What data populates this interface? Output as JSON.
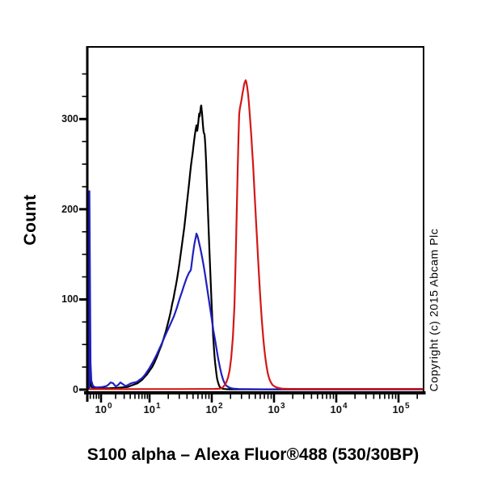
{
  "page": {
    "copyright": "Copyright (c) 2015 Abcam Plc",
    "background": "#ffffff"
  },
  "colors": {
    "axis": "#000000",
    "black_curve": "#000000",
    "blue_curve": "#1f1fc0",
    "red_curve": "#d41717",
    "background": "#ffffff"
  },
  "chart_data": {
    "type": "line",
    "subtype": "flow-cytometry-histogram",
    "title": "S100 alpha – Alexa Fluor®488 (530/30BP)",
    "xlabel": "",
    "ylabel": "Count",
    "x_scale": "log",
    "xlim": [
      0.55,
      250000
    ],
    "ylim": [
      0,
      380
    ],
    "grid": false,
    "legend": null,
    "y_ticks": [
      {
        "label": "0",
        "value": 0
      },
      {
        "label": "100",
        "value": 100
      },
      {
        "label": "200",
        "value": 200
      },
      {
        "label": "300",
        "value": 300
      }
    ],
    "y_minor_tick_step": 25,
    "y_minor_tick_max": 350,
    "x_ticks": [
      {
        "base": "10",
        "exp": "0",
        "value": 1
      },
      {
        "base": "10",
        "exp": "1",
        "value": 10
      },
      {
        "base": "10",
        "exp": "2",
        "value": 100
      },
      {
        "base": "10",
        "exp": "3",
        "value": 1000
      },
      {
        "base": "10",
        "exp": "4",
        "value": 10000
      },
      {
        "base": "10",
        "exp": "5",
        "value": 100000
      }
    ],
    "series": [
      {
        "name": "black-curve",
        "color": "#000000",
        "points": [
          [
            0.575,
            0
          ],
          [
            0.575,
            148
          ],
          [
            0.59,
            40
          ],
          [
            0.6,
            10
          ],
          [
            0.62,
            4
          ],
          [
            0.65,
            2.5
          ],
          [
            0.68,
            2
          ],
          [
            0.76,
            2
          ],
          [
            0.89,
            1.8
          ],
          [
            1.0,
            1.5
          ],
          [
            1.2,
            1.5
          ],
          [
            1.47,
            1.5
          ],
          [
            1.8,
            1.8
          ],
          [
            2.15,
            2
          ],
          [
            2.5,
            2.2
          ],
          [
            2.82,
            2.5
          ],
          [
            3.2,
            2.8
          ],
          [
            3.55,
            3
          ],
          [
            4.0,
            4
          ],
          [
            4.47,
            5
          ],
          [
            5.0,
            6
          ],
          [
            5.62,
            7
          ],
          [
            6.3,
            9
          ],
          [
            7.08,
            11
          ],
          [
            7.9,
            14
          ],
          [
            8.91,
            17
          ],
          [
            10,
            21
          ],
          [
            11,
            25
          ],
          [
            12,
            30
          ],
          [
            13.1,
            36
          ],
          [
            14.3,
            43
          ],
          [
            15.7,
            50
          ],
          [
            16.9,
            57
          ],
          [
            18.2,
            64
          ],
          [
            19.3,
            71
          ],
          [
            20.5,
            78
          ],
          [
            21.8,
            86
          ],
          [
            23.1,
            95
          ],
          [
            24.2,
            101
          ],
          [
            25.3,
            108
          ],
          [
            26.4,
            115
          ],
          [
            27.6,
            122
          ],
          [
            28.9,
            131
          ],
          [
            30.2,
            140
          ],
          [
            31.6,
            150
          ],
          [
            33.1,
            160
          ],
          [
            34.6,
            170
          ],
          [
            36.2,
            180
          ],
          [
            37.3,
            188
          ],
          [
            38.4,
            196
          ],
          [
            39.5,
            204
          ],
          [
            40.7,
            212
          ],
          [
            42,
            221
          ],
          [
            43.4,
            230
          ],
          [
            44.8,
            239
          ],
          [
            46.2,
            248
          ],
          [
            47.7,
            255
          ],
          [
            49.2,
            262
          ],
          [
            50.5,
            269
          ],
          [
            51.8,
            275
          ],
          [
            53.4,
            282
          ],
          [
            55,
            288
          ],
          [
            56.6,
            293
          ],
          [
            57.4,
            290
          ],
          [
            58.3,
            287
          ],
          [
            59.2,
            290
          ],
          [
            60.1,
            294
          ],
          [
            61,
            298
          ],
          [
            61.9,
            303
          ],
          [
            62.8,
            306
          ],
          [
            63.8,
            303
          ],
          [
            64.7,
            306
          ],
          [
            65.7,
            310
          ],
          [
            66.7,
            314
          ],
          [
            67.8,
            315
          ],
          [
            68.8,
            310
          ],
          [
            69.8,
            306
          ],
          [
            70.8,
            300
          ],
          [
            71.9,
            294
          ],
          [
            73,
            289
          ],
          [
            74.1,
            285
          ],
          [
            75.2,
            284
          ],
          [
            76.4,
            283
          ],
          [
            77.5,
            278
          ],
          [
            78.7,
            271
          ],
          [
            79.9,
            262
          ],
          [
            81.1,
            252
          ],
          [
            82.3,
            240
          ],
          [
            83.5,
            228
          ],
          [
            84.8,
            216
          ],
          [
            86.1,
            204
          ],
          [
            87.4,
            192
          ],
          [
            88.7,
            180
          ],
          [
            90,
            168
          ],
          [
            91.4,
            156
          ],
          [
            92.8,
            145
          ],
          [
            94.2,
            134
          ],
          [
            95.6,
            123
          ],
          [
            97,
            112
          ],
          [
            98.5,
            101
          ],
          [
            100,
            91
          ],
          [
            101.5,
            81
          ],
          [
            103,
            72
          ],
          [
            105,
            61
          ],
          [
            107,
            51
          ],
          [
            109,
            43
          ],
          [
            111,
            36
          ],
          [
            113,
            30
          ],
          [
            116,
            23
          ],
          [
            119,
            17
          ],
          [
            122,
            12
          ],
          [
            125,
            9
          ],
          [
            128,
            6.5
          ],
          [
            131,
            4.5
          ],
          [
            135,
            3
          ],
          [
            139,
            2
          ],
          [
            144,
            1.5
          ],
          [
            150,
            1
          ],
          [
            158,
            0.7
          ],
          [
            170,
            0.5
          ],
          [
            190,
            0.4
          ],
          [
            300,
            0.4
          ],
          [
            1000,
            0.4
          ],
          [
            5000,
            0.4
          ],
          [
            30000,
            0.4
          ],
          [
            250000,
            0.4
          ]
        ]
      },
      {
        "name": "blue-curve",
        "color": "#1f1fc0",
        "points": [
          [
            0.575,
            0
          ],
          [
            0.575,
            220
          ],
          [
            0.607,
            30
          ],
          [
            0.631,
            10
          ],
          [
            0.681,
            4
          ],
          [
            0.764,
            2.5
          ],
          [
            0.891,
            2.5
          ],
          [
            1.08,
            3
          ],
          [
            1.31,
            4
          ],
          [
            1.45,
            6
          ],
          [
            1.585,
            8
          ],
          [
            1.78,
            7
          ],
          [
            2.0,
            3.5
          ],
          [
            2.24,
            5
          ],
          [
            2.51,
            8
          ],
          [
            2.82,
            6
          ],
          [
            3.16,
            4
          ],
          [
            3.55,
            5
          ],
          [
            3.98,
            6.5
          ],
          [
            4.47,
            7.5
          ],
          [
            5.01,
            8
          ],
          [
            5.62,
            9
          ],
          [
            6.31,
            11
          ],
          [
            7.08,
            13
          ],
          [
            7.94,
            16
          ],
          [
            8.91,
            20
          ],
          [
            10,
            24
          ],
          [
            11,
            29
          ],
          [
            12,
            34
          ],
          [
            13.1,
            39
          ],
          [
            14.3,
            45
          ],
          [
            15.7,
            51
          ],
          [
            17.1,
            57
          ],
          [
            18.7,
            63
          ],
          [
            20.5,
            69
          ],
          [
            22.4,
            75
          ],
          [
            24.5,
            81
          ],
          [
            26,
            86
          ],
          [
            27.6,
            91
          ],
          [
            29.3,
            97
          ],
          [
            31.2,
            103
          ],
          [
            33.1,
            108
          ],
          [
            35.2,
            114
          ],
          [
            37.3,
            119
          ],
          [
            39.6,
            124
          ],
          [
            42,
            128
          ],
          [
            43.4,
            130
          ],
          [
            44.8,
            131
          ],
          [
            46.2,
            133
          ],
          [
            47.7,
            140
          ],
          [
            49.2,
            148
          ],
          [
            50.8,
            155
          ],
          [
            52.4,
            161
          ],
          [
            54.1,
            166
          ],
          [
            55.8,
            170
          ],
          [
            56.6,
            173
          ],
          [
            58.3,
            171
          ],
          [
            60.1,
            168
          ],
          [
            61.9,
            164
          ],
          [
            65.7,
            156
          ],
          [
            69.8,
            147
          ],
          [
            74.1,
            137
          ],
          [
            78.7,
            126
          ],
          [
            83.5,
            114
          ],
          [
            88.7,
            102
          ],
          [
            94.2,
            90
          ],
          [
            100,
            78
          ],
          [
            106,
            66
          ],
          [
            113,
            55
          ],
          [
            120,
            44
          ],
          [
            127,
            34
          ],
          [
            135,
            25
          ],
          [
            143,
            17
          ],
          [
            152,
            11
          ],
          [
            161,
            7
          ],
          [
            171,
            4.5
          ],
          [
            188,
            2.5
          ],
          [
            206,
            1.5
          ],
          [
            231,
            1
          ],
          [
            268,
            0.7
          ],
          [
            330,
            0.5
          ],
          [
            1000,
            0.3
          ],
          [
            10000,
            0.3
          ],
          [
            250000,
            0.3
          ]
        ]
      },
      {
        "name": "red-curve",
        "color": "#d41717",
        "points": [
          [
            0.575,
            0.5
          ],
          [
            1,
            0.5
          ],
          [
            3,
            0.5
          ],
          [
            10,
            0.6
          ],
          [
            30,
            0.6
          ],
          [
            70,
            0.7
          ],
          [
            110,
            0.8
          ],
          [
            135,
            1
          ],
          [
            143,
            1.5
          ],
          [
            152,
            3
          ],
          [
            161,
            5
          ],
          [
            171,
            8
          ],
          [
            182,
            13
          ],
          [
            193,
            21
          ],
          [
            205,
            35
          ],
          [
            218,
            58
          ],
          [
            231,
            92
          ],
          [
            238,
            125
          ],
          [
            245,
            162
          ],
          [
            253,
            202
          ],
          [
            260,
            242
          ],
          [
            268,
            278
          ],
          [
            272,
            294
          ],
          [
            276,
            305
          ],
          [
            281,
            311
          ],
          [
            285,
            313
          ],
          [
            294,
            318
          ],
          [
            303,
            323
          ],
          [
            311,
            328
          ],
          [
            321,
            333
          ],
          [
            330,
            338
          ],
          [
            340,
            341
          ],
          [
            351,
            343
          ],
          [
            361,
            340
          ],
          [
            372,
            335
          ],
          [
            384,
            327
          ],
          [
            395,
            318
          ],
          [
            407,
            306
          ],
          [
            419,
            294
          ],
          [
            432,
            281
          ],
          [
            445,
            266
          ],
          [
            459,
            251
          ],
          [
            473,
            234
          ],
          [
            487,
            218
          ],
          [
            502,
            200
          ],
          [
            517,
            184
          ],
          [
            533,
            167
          ],
          [
            549,
            151
          ],
          [
            565,
            135
          ],
          [
            582,
            119
          ],
          [
            600,
            104
          ],
          [
            618,
            90
          ],
          [
            637,
            77
          ],
          [
            656,
            66
          ],
          [
            676,
            55
          ],
          [
            697,
            46
          ],
          [
            718,
            38
          ],
          [
            740,
            31
          ],
          [
            762,
            25
          ],
          [
            795,
            18
          ],
          [
            832,
            13
          ],
          [
            870,
            9.5
          ],
          [
            908,
            7
          ],
          [
            950,
            5
          ],
          [
            1020,
            3.5
          ],
          [
            1100,
            2.5
          ],
          [
            1180,
            1.8
          ],
          [
            1280,
            1.3
          ],
          [
            1365,
            1
          ],
          [
            1550,
            0.9
          ],
          [
            1800,
            0.8
          ],
          [
            2500,
            0.8
          ],
          [
            5000,
            0.8
          ],
          [
            10000,
            0.8
          ],
          [
            30000,
            0.8
          ],
          [
            100000,
            0.8
          ],
          [
            250000,
            0.8
          ]
        ]
      }
    ]
  }
}
